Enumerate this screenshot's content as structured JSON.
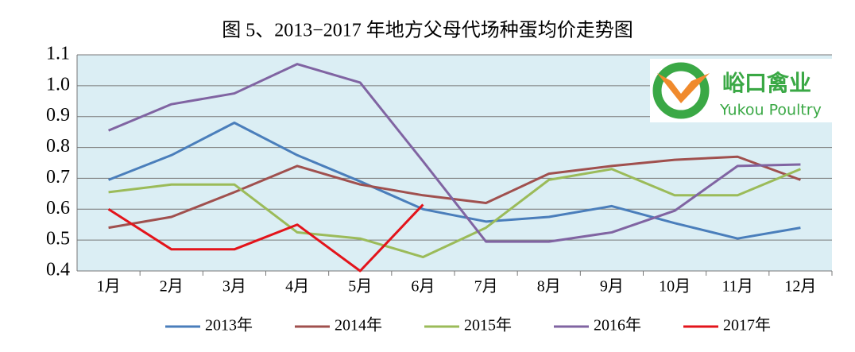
{
  "chart_data": {
    "type": "line",
    "title": "图 5、2013−2017 年地方父母代场种蛋均价走势图",
    "categories": [
      "1月",
      "2月",
      "3月",
      "4月",
      "5月",
      "6月",
      "7月",
      "8月",
      "9月",
      "10月",
      "11月",
      "12月"
    ],
    "series": [
      {
        "name": "2013年",
        "color": "#4a7ebb",
        "values": [
          0.695,
          0.775,
          0.88,
          0.775,
          0.69,
          0.6,
          0.56,
          0.575,
          0.61,
          0.555,
          0.505,
          0.54
        ]
      },
      {
        "name": "2014年",
        "color": "#a0504e",
        "values": [
          0.54,
          0.575,
          0.655,
          0.74,
          0.68,
          0.645,
          0.62,
          0.715,
          0.74,
          0.76,
          0.77,
          0.695
        ]
      },
      {
        "name": "2015年",
        "color": "#9bbb59",
        "values": [
          0.655,
          0.68,
          0.68,
          0.525,
          0.505,
          0.445,
          0.54,
          0.695,
          0.73,
          0.645,
          0.645,
          0.73
        ]
      },
      {
        "name": "2016年",
        "color": "#8064a2",
        "values": [
          0.855,
          0.94,
          0.975,
          1.07,
          1.01,
          0.755,
          0.495,
          0.495,
          0.525,
          0.595,
          0.74,
          0.745
        ]
      },
      {
        "name": "2017年",
        "color": "#e3141b",
        "values": [
          0.6,
          0.47,
          0.47,
          0.55,
          0.4,
          0.615,
          null,
          null,
          null,
          null,
          null,
          null
        ]
      }
    ],
    "ylim": [
      0.4,
      1.1
    ],
    "yticks": [
      0.4,
      0.5,
      0.6,
      0.7,
      0.8,
      0.9,
      {
        "value": 1,
        "label": "1.0"
      },
      1.1
    ],
    "grid": true,
    "legend": "bottom"
  },
  "logo": {
    "name": "峪口禽业",
    "subtitle": "Yukou Poultry"
  }
}
